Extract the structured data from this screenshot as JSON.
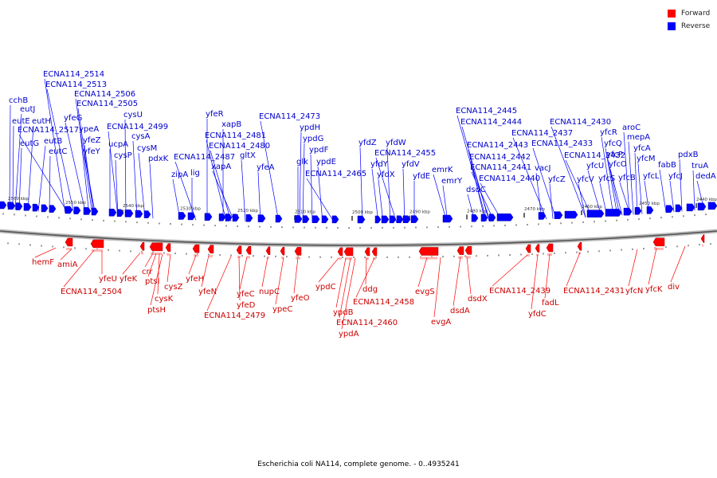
{
  "legend": {
    "forward_label": "Forward",
    "reverse_label": "Reverse",
    "forward_color": "#ff0000",
    "reverse_color": "#0000ff"
  },
  "caption": "Escherichia coli NA114, complete genome. - 0..4935241",
  "ruler": [
    "2560 kbp",
    "2550 kbp",
    "2540 kbp",
    "2530 kbp",
    "2520 kbp",
    "2510 kbp",
    "2500 kbp",
    "2490 kbp",
    "2480 kbp",
    "2470 kbp",
    "2460 kbp",
    "2450 kbp",
    "2440 kbp"
  ],
  "reverse_genes": [
    "cchB",
    "eutJ",
    "eutE",
    "eutH",
    "eutG",
    "eutB",
    "eutC",
    "ECNA114_2517",
    "ECNA114_2514",
    "ECNA114_2513",
    "yfeG",
    "ECNA114_2506",
    "ECNA114_2505",
    "ypeA",
    "yfeZ",
    "yfeY",
    "ucpA",
    "cysU",
    "ECNA114_2499",
    "cysA",
    "cysP",
    "cysM",
    "pdxK",
    "zipA",
    "lig",
    "ECNA114_2487",
    "yfeR",
    "xapB",
    "ECNA114_2481",
    "ECNA114_2480",
    "xapA",
    "gltX",
    "yfeA",
    "ECNA114_2473",
    "ypdH",
    "ypdG",
    "ypdF",
    "glk",
    "ypdE",
    "ECNA114_2465",
    "yfdZ",
    "yfdY",
    "yfdX",
    "yfdW",
    "ECNA114_2455",
    "yfdV",
    "yfdE",
    "emrK",
    "emrY",
    "ECNA114_2445",
    "ECNA114_2444",
    "dsdC",
    "ECNA114_2443",
    "ECNA114_2442",
    "ECNA114_2441",
    "ECNA114_2440",
    "ECNA114_2437",
    "ECNA114_2433",
    "vacJ",
    "yfcZ",
    "ECNA114_2430",
    "ECNA114_2432",
    "yfcU",
    "yfcV",
    "yfcR",
    "yfcQ",
    "yfcP",
    "yfcO",
    "yfcS",
    "aroC",
    "mepA",
    "yfcA",
    "yfcM",
    "yfcB",
    "yfcL",
    "fabB",
    "yfcJ",
    "pdxB",
    "truA",
    "dedA"
  ],
  "forward_genes": [
    "hemF",
    "amiA",
    "ECNA114_2504",
    "yfeU",
    "yfeK",
    "crr",
    "ptsI",
    "cysK",
    "ptsH",
    "cysZ",
    "yfeH",
    "yfeN",
    "ECNA114_2479",
    "yfeD",
    "yfeC",
    "nupC",
    "ypeC",
    "yfeO",
    "ypdC",
    "ypdB",
    "ECNA114_2460",
    "ypdA",
    "ddg",
    "ECNA114_2458",
    "evgS",
    "evgA",
    "dsdA",
    "dsdX",
    "ECNA114_2439",
    "yfdC",
    "fadL",
    "ECNA114_2431",
    "yfcN",
    "yfcK",
    "div"
  ]
}
